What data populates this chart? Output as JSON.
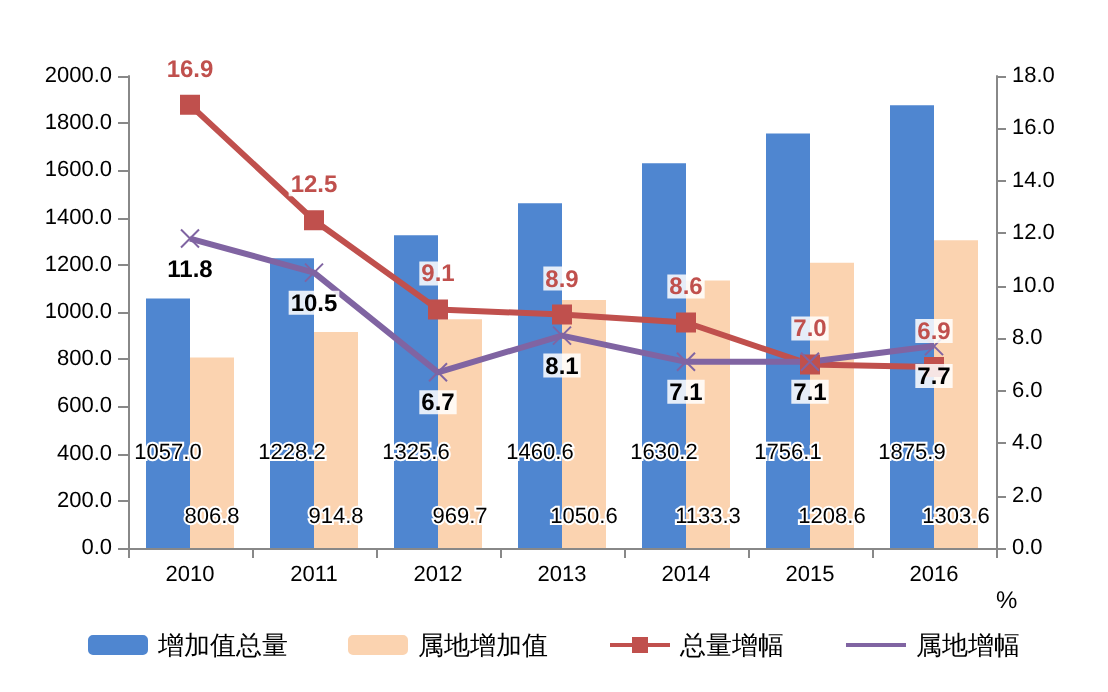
{
  "chart_data": {
    "type": "bar",
    "categories": [
      "2010",
      "2011",
      "2012",
      "2013",
      "2014",
      "2015",
      "2016"
    ],
    "series": [
      {
        "name": "增加值总量",
        "color": "#4f86d0",
        "values": [
          1057.0,
          1228.2,
          1325.6,
          1460.6,
          1630.2,
          1756.1,
          1875.9
        ],
        "value_labels": [
          "1057.0",
          "1228.2",
          "1325.6",
          "1460.6",
          "1630.2",
          "1756.1",
          "1875.9"
        ]
      },
      {
        "name": "属地增加值",
        "color": "#fbd3b0",
        "values": [
          806.8,
          914.8,
          969.7,
          1050.6,
          1133.3,
          1208.6,
          1303.6
        ],
        "value_labels": [
          "806.8",
          "914.8",
          "969.7",
          "1050.6",
          "1133.3",
          "1208.6",
          "1303.6"
        ]
      },
      {
        "name": "总量增幅",
        "type": "line",
        "axis": "y2",
        "color": "#c0504d",
        "marker": "square",
        "values": [
          16.9,
          12.5,
          9.1,
          8.9,
          8.6,
          7.0,
          6.9
        ],
        "value_labels": [
          "16.9",
          "12.5",
          "9.1",
          "8.9",
          "8.6",
          "7.0",
          "6.9"
        ]
      },
      {
        "name": "属地增幅",
        "type": "line",
        "axis": "y2",
        "color": "#8064a2",
        "marker": "cross",
        "values": [
          11.8,
          10.5,
          6.7,
          8.1,
          7.1,
          7.1,
          7.7
        ],
        "value_labels": [
          "11.8",
          "10.5",
          "6.7",
          "8.1",
          "7.1",
          "7.1",
          "7.7"
        ]
      }
    ],
    "ylim": [
      0,
      2000
    ],
    "yticks": [
      {
        "value": 0,
        "label": "0.0"
      },
      {
        "value": 200,
        "label": "200.0"
      },
      {
        "value": 400,
        "label": "400.0"
      },
      {
        "value": 600,
        "label": "600.0"
      },
      {
        "value": 800,
        "label": "800.0"
      },
      {
        "value": 1000,
        "label": "1000.0"
      },
      {
        "value": 1200,
        "label": "1200.0"
      },
      {
        "value": 1400,
        "label": "1400.0"
      },
      {
        "value": 1600,
        "label": "1600.0"
      },
      {
        "value": 1800,
        "label": "1800.0"
      },
      {
        "value": 2000,
        "label": "2000.0"
      }
    ],
    "y2lim": [
      0,
      18
    ],
    "y2ticks": [
      {
        "value": 0,
        "label": "0.0"
      },
      {
        "value": 2,
        "label": "2.0"
      },
      {
        "value": 4,
        "label": "4.0"
      },
      {
        "value": 6,
        "label": "6.0"
      },
      {
        "value": 8,
        "label": "8.0"
      },
      {
        "value": 10,
        "label": "10.0"
      },
      {
        "value": 12,
        "label": "12.0"
      },
      {
        "value": 14,
        "label": "14.0"
      },
      {
        "value": 16,
        "label": "16.0"
      },
      {
        "value": 18,
        "label": "18.0"
      }
    ],
    "y2label": "%",
    "grid": false,
    "legend": "bottom"
  }
}
